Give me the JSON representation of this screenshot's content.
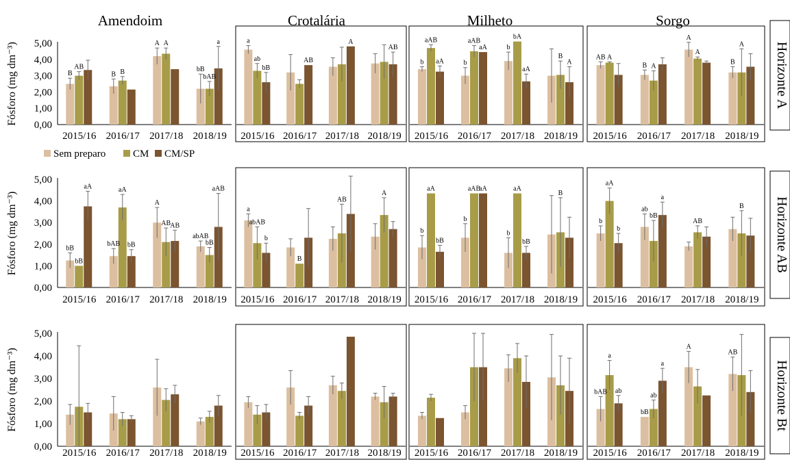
{
  "figure": {
    "crop_titles": [
      "Amendoim",
      "Crotalária",
      "Milheto",
      "Sorgo"
    ],
    "horizon_labels": [
      "Horizonte A",
      "Horizonte AB",
      "Horizonte Bt"
    ],
    "ylabel": "Fósforo (mg dm⁻³)",
    "yticks": [
      "0,00",
      "1,00",
      "2,00",
      "3,00",
      "4,00",
      "5,00"
    ],
    "legend": [
      {
        "label": "Sem preparo",
        "color": "#dcbfa0"
      },
      {
        "label": "CM",
        "color": "#a89c48"
      },
      {
        "label": "CM/SP",
        "color": "#7b5430"
      }
    ]
  },
  "chart_data": [
    {
      "type": "bar",
      "row": "Horizonte A",
      "crop": "Amendoim",
      "categories": [
        "2015/16",
        "2016/17",
        "2017/18",
        "2018/19"
      ],
      "ylim": [
        0,
        5
      ],
      "ylabel": "Fósforo (mg dm⁻³)",
      "series": [
        {
          "name": "Sem preparo",
          "values": [
            2.5,
            2.35,
            4.2,
            2.2
          ],
          "errors": [
            0.35,
            0.45,
            0.5,
            0.9
          ],
          "labels": [
            "B",
            "B",
            "A",
            "bB"
          ]
        },
        {
          "name": "CM",
          "values": [
            3.0,
            2.7,
            4.35,
            2.2
          ],
          "errors": [
            0.25,
            0.25,
            0.35,
            0.45
          ],
          "labels": [
            "AB",
            "B",
            "A",
            "bAB"
          ]
        },
        {
          "name": "CM/SP",
          "values": [
            3.35,
            2.15,
            3.4,
            3.45
          ],
          "errors": [
            0.6,
            0,
            0,
            1.35
          ],
          "labels": [
            "",
            "",
            "",
            "a"
          ]
        }
      ]
    },
    {
      "type": "bar",
      "row": "Horizonte A",
      "crop": "Crotalária",
      "categories": [
        "2015/16",
        "2016/17",
        "2017/18",
        "2018/19"
      ],
      "ylim": [
        0,
        5
      ],
      "series": [
        {
          "name": "Sem preparo",
          "values": [
            4.6,
            3.2,
            3.55,
            3.75
          ],
          "errors": [
            0.25,
            1.1,
            0.55,
            0.6
          ],
          "labels": [
            "a",
            "",
            "",
            ""
          ]
        },
        {
          "name": "CM",
          "values": [
            3.3,
            2.5,
            3.7,
            3.85
          ],
          "errors": [
            0.45,
            0.25,
            1.05,
            1.05
          ],
          "labels": [
            "ab",
            "",
            "",
            ""
          ]
        },
        {
          "name": "CM/SP",
          "values": [
            2.6,
            3.65,
            4.8,
            3.7
          ],
          "errors": [
            0.6,
            0,
            0,
            0.75
          ],
          "labels": [
            "bB",
            "AB",
            "A",
            "AB"
          ]
        }
      ]
    },
    {
      "type": "bar",
      "row": "Horizonte A",
      "crop": "Milheto",
      "categories": [
        "2015/16",
        "2016/17",
        "2017/18",
        "2018/19"
      ],
      "ylim": [
        0,
        5
      ],
      "series": [
        {
          "name": "Sem preparo",
          "values": [
            3.4,
            3.0,
            3.9,
            3.0
          ],
          "errors": [
            0.15,
            0.5,
            0.55,
            1.65
          ],
          "labels": [
            "b",
            "b",
            "b",
            ""
          ]
        },
        {
          "name": "CM",
          "values": [
            4.7,
            4.5,
            5.1,
            3.05
          ],
          "errors": [
            0.2,
            0.35,
            0,
            0.85
          ],
          "labels": [
            "aAB",
            "aAB",
            "bA",
            "B"
          ]
        },
        {
          "name": "CM/SP",
          "values": [
            3.25,
            4.45,
            2.65,
            2.6
          ],
          "errors": [
            0.35,
            0,
            0.45,
            0.95
          ],
          "labels": [
            "aA",
            "aA",
            "aA",
            "A"
          ]
        }
      ]
    },
    {
      "type": "bar",
      "row": "Horizonte A",
      "crop": "Sorgo",
      "categories": [
        "2015/16",
        "2016/17",
        "2017/18",
        "2018/19"
      ],
      "ylim": [
        0,
        5
      ],
      "series": [
        {
          "name": "Sem preparo",
          "values": [
            3.65,
            3.05,
            4.6,
            3.2
          ],
          "errors": [
            0.2,
            0.3,
            0.45,
            0.35
          ],
          "labels": [
            "AB",
            "B",
            "A",
            "B"
          ]
        },
        {
          "name": "CM",
          "values": [
            3.8,
            2.7,
            4.05,
            3.2
          ],
          "errors": [
            0.05,
            0.6,
            0.1,
            1.45
          ],
          "labels": [
            "A",
            "A",
            "A",
            "A"
          ]
        },
        {
          "name": "CM/SP",
          "values": [
            3.05,
            3.7,
            3.8,
            3.55
          ],
          "errors": [
            0.7,
            0.4,
            0.1,
            0.8
          ],
          "labels": [
            "",
            "",
            "",
            ""
          ]
        }
      ]
    },
    {
      "type": "bar",
      "row": "Horizonte AB",
      "crop": "Amendoim",
      "categories": [
        "2015/16",
        "2016/17",
        "2017/18",
        "2018/19"
      ],
      "ylim": [
        0,
        5
      ],
      "ylabel": "Fósforo (mg dm⁻³)",
      "series": [
        {
          "name": "Sem preparo",
          "values": [
            1.25,
            1.45,
            3.0,
            1.9
          ],
          "errors": [
            0.35,
            0.35,
            0.7,
            0.25
          ],
          "labels": [
            "bB",
            "bAB",
            "A",
            "abAB"
          ]
        },
        {
          "name": "CM",
          "values": [
            1.0,
            3.7,
            2.1,
            1.5
          ],
          "errors": [
            0,
            0.6,
            0.65,
            0.35
          ],
          "labels": [
            "bB",
            "aA",
            "AB",
            "bB"
          ]
        },
        {
          "name": "CM/SP",
          "values": [
            3.75,
            1.45,
            2.15,
            2.8
          ],
          "errors": [
            0.7,
            0.3,
            0.5,
            1.55
          ],
          "labels": [
            "aA",
            "bB",
            "AB",
            "aAB"
          ]
        }
      ]
    },
    {
      "type": "bar",
      "row": "Horizonte AB",
      "crop": "Crotalária",
      "categories": [
        "2015/16",
        "2016/17",
        "2017/18",
        "2018/19"
      ],
      "ylim": [
        0,
        5
      ],
      "series": [
        {
          "name": "Sem preparo",
          "values": [
            3.1,
            1.85,
            2.25,
            2.35
          ],
          "errors": [
            0.3,
            0.4,
            0.55,
            0.6
          ],
          "labels": [
            "a",
            "",
            "",
            ""
          ]
        },
        {
          "name": "CM",
          "values": [
            2.05,
            1.1,
            2.5,
            3.35
          ],
          "errors": [
            0.75,
            0,
            1.35,
            0.8
          ],
          "labels": [
            "abAB",
            "B",
            "AB",
            "A"
          ]
        },
        {
          "name": "CM/SP",
          "values": [
            1.6,
            2.3,
            3.4,
            2.7
          ],
          "errors": [
            0.45,
            1.35,
            1.75,
            0.35
          ],
          "labels": [
            "b",
            "",
            "",
            ""
          ]
        }
      ]
    },
    {
      "type": "bar",
      "row": "Horizonte AB",
      "crop": "Milheto",
      "categories": [
        "2015/16",
        "2016/17",
        "2017/18",
        "2018/19"
      ],
      "ylim": [
        0,
        5
      ],
      "series": [
        {
          "name": "Sem preparo",
          "values": [
            1.85,
            2.3,
            1.6,
            2.45
          ],
          "errors": [
            0.55,
            0.65,
            0.7,
            1.8
          ],
          "labels": [
            "b",
            "b",
            "b",
            ""
          ]
        },
        {
          "name": "CM",
          "values": [
            4.35,
            4.35,
            4.35,
            2.55
          ],
          "errors": [
            0,
            0,
            0,
            1.6
          ],
          "labels": [
            "aA",
            "aAB",
            "aA",
            "B"
          ]
        },
        {
          "name": "CM/SP",
          "values": [
            1.65,
            4.35,
            1.6,
            2.3
          ],
          "errors": [
            0.3,
            0,
            0.3,
            0.95
          ],
          "labels": [
            "bB",
            "aA",
            "bB",
            ""
          ]
        }
      ]
    },
    {
      "type": "bar",
      "row": "Horizonte AB",
      "crop": "Sorgo",
      "categories": [
        "2015/16",
        "2016/17",
        "2017/18",
        "2018/19"
      ],
      "ylim": [
        0,
        5
      ],
      "series": [
        {
          "name": "Sem preparo",
          "values": [
            2.5,
            2.8,
            1.9,
            2.7
          ],
          "errors": [
            0.35,
            0.6,
            0.2,
            0.55
          ],
          "labels": [
            "b",
            "ab",
            "",
            ""
          ]
        },
        {
          "name": "CM",
          "values": [
            4.0,
            2.15,
            2.55,
            2.5
          ],
          "errors": [
            0.6,
            0.95,
            0.3,
            1.05
          ],
          "labels": [
            "aA",
            "bB",
            "AB",
            "B"
          ]
        },
        {
          "name": "CM/SP",
          "values": [
            2.05,
            3.35,
            2.35,
            2.4
          ],
          "errors": [
            0.45,
            0.6,
            0.45,
            0.8
          ],
          "labels": [
            "b",
            "a",
            "",
            ""
          ]
        }
      ]
    },
    {
      "type": "bar",
      "row": "Horizonte Bt",
      "crop": "Amendoim",
      "categories": [
        "2015/16",
        "2016/17",
        "2017/18",
        "2018/19"
      ],
      "ylim": [
        0,
        5
      ],
      "ylabel": "Fósforo (mg dm⁻³)",
      "series": [
        {
          "name": "Sem preparo",
          "values": [
            1.4,
            1.45,
            2.6,
            1.1
          ],
          "errors": [
            0.45,
            0.75,
            1.25,
            0.15
          ],
          "labels": [
            "",
            "",
            "",
            ""
          ]
        },
        {
          "name": "CM",
          "values": [
            1.75,
            1.2,
            2.05,
            1.3
          ],
          "errors": [
            2.7,
            0.3,
            0.5,
            0.25
          ],
          "labels": [
            "",
            "",
            "",
            ""
          ]
        },
        {
          "name": "CM/SP",
          "values": [
            1.5,
            1.2,
            2.3,
            1.8
          ],
          "errors": [
            0.4,
            0.15,
            0.4,
            0.45
          ],
          "labels": [
            "",
            "",
            "",
            ""
          ]
        }
      ]
    },
    {
      "type": "bar",
      "row": "Horizonte Bt",
      "crop": "Crotalária",
      "categories": [
        "2015/16",
        "2016/17",
        "2017/18",
        "2018/19"
      ],
      "ylim": [
        0,
        5
      ],
      "series": [
        {
          "name": "Sem preparo",
          "values": [
            1.95,
            2.6,
            2.7,
            2.2
          ],
          "errors": [
            0.25,
            0.75,
            0.4,
            0.15
          ],
          "labels": [
            "",
            "",
            "",
            ""
          ]
        },
        {
          "name": "CM",
          "values": [
            1.4,
            1.35,
            2.45,
            1.95
          ],
          "errors": [
            0.4,
            0.15,
            0.35,
            0.7
          ],
          "labels": [
            "",
            "",
            "",
            ""
          ]
        },
        {
          "name": "CM/SP",
          "values": [
            1.5,
            1.8,
            4.85,
            2.2
          ],
          "errors": [
            0.35,
            0.4,
            0,
            0.15
          ],
          "labels": [
            "",
            "",
            "",
            ""
          ]
        }
      ]
    },
    {
      "type": "bar",
      "row": "Horizonte Bt",
      "crop": "Milheto",
      "categories": [
        "2015/16",
        "2016/17",
        "2017/18",
        "2018/19"
      ],
      "ylim": [
        0,
        5
      ],
      "series": [
        {
          "name": "Sem preparo",
          "values": [
            1.35,
            1.5,
            3.45,
            3.05
          ],
          "errors": [
            0.15,
            0.3,
            0.6,
            1.9
          ],
          "labels": [
            "",
            "",
            "",
            ""
          ]
        },
        {
          "name": "CM",
          "values": [
            2.15,
            3.5,
            3.9,
            2.7
          ],
          "errors": [
            0.15,
            1.5,
            0.65,
            1.3
          ],
          "labels": [
            "",
            "",
            "",
            ""
          ]
        },
        {
          "name": "CM/SP",
          "values": [
            1.25,
            3.5,
            2.85,
            2.45
          ],
          "errors": [
            0,
            1.5,
            1.15,
            1.45
          ],
          "labels": [
            "",
            "",
            "",
            ""
          ]
        }
      ]
    },
    {
      "type": "bar",
      "row": "Horizonte Bt",
      "crop": "Sorgo",
      "categories": [
        "2015/16",
        "2016/17",
        "2017/18",
        "2018/19"
      ],
      "ylim": [
        0,
        5
      ],
      "series": [
        {
          "name": "Sem preparo",
          "values": [
            1.65,
            1.3,
            3.5,
            3.2
          ],
          "errors": [
            0.55,
            0,
            0.7,
            0.75
          ],
          "labels": [
            "bAB",
            "bB",
            "A",
            "AB"
          ]
        },
        {
          "name": "CM",
          "values": [
            3.15,
            1.65,
            2.65,
            3.15
          ],
          "errors": [
            0.65,
            0.4,
            0.75,
            1.8
          ],
          "labels": [
            "a",
            "ab",
            "",
            ""
          ]
        },
        {
          "name": "CM/SP",
          "values": [
            1.9,
            2.9,
            2.25,
            2.4
          ],
          "errors": [
            0.35,
            0.55,
            0,
            0.95
          ],
          "labels": [
            "ab",
            "a",
            "",
            ""
          ]
        }
      ]
    }
  ]
}
